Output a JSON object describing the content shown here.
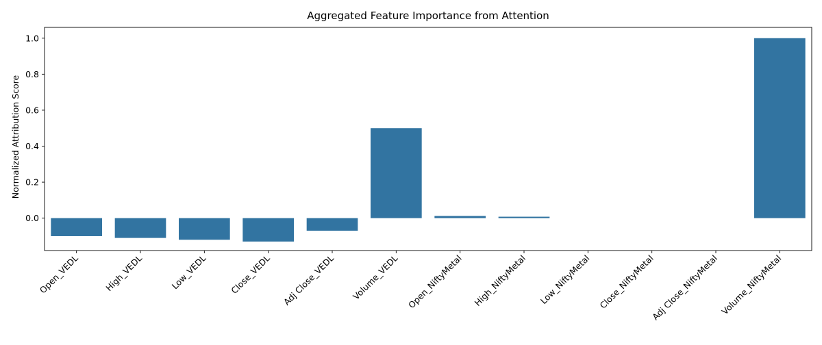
{
  "chart_data": {
    "type": "bar",
    "title": "Aggregated Feature Importance from Attention",
    "xlabel": "",
    "ylabel": "Normalized Attribution Score",
    "categories": [
      "Open_VEDL",
      "High_VEDL",
      "Low_VEDL",
      "Close_VEDL",
      "Adj Close_VEDL",
      "Volume_VEDL",
      "Open_NiftyMetal",
      "High_NiftyMetal",
      "Low_NiftyMetal",
      "Close_NiftyMetal",
      "Adj Close_NiftyMetal",
      "Volume_NiftyMetal"
    ],
    "values": [
      -0.1,
      -0.11,
      -0.12,
      -0.13,
      -0.07,
      0.5,
      0.012,
      0.008,
      0.0,
      0.0,
      0.0,
      1.0
    ],
    "ylim": [
      -0.18,
      1.06
    ],
    "yticks": [
      0.0,
      0.2,
      0.4,
      0.6,
      0.8,
      1.0
    ],
    "ytick_labels": [
      "0.0",
      "0.2",
      "0.4",
      "0.6",
      "0.8",
      "1.0"
    ],
    "bar_color": "#3274a1",
    "grid": false,
    "legend": "none"
  }
}
